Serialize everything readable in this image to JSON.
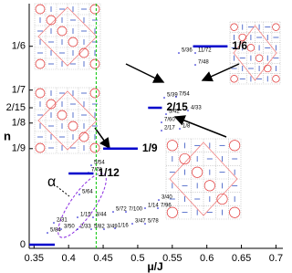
{
  "chart_data": {
    "type": "staircase",
    "xlabel": "μ/J",
    "ylabel": "n",
    "xlim": [
      0.343,
      0.71
    ],
    "xticks": [
      0.35,
      0.4,
      0.45,
      0.5,
      0.55,
      0.6,
      0.65,
      0.7
    ],
    "ylim": [
      0,
      0.178
    ],
    "yticks": [
      0,
      {
        "value": 0.1111,
        "label": "1/9"
      },
      {
        "value": 0.125,
        "label": "1/8"
      },
      {
        "value": 0.1333,
        "label": "2/15"
      },
      {
        "value": 0.1429,
        "label": "1/7"
      },
      {
        "value": 0.1667,
        "label": "1/6"
      }
    ],
    "color": "#0000cc",
    "plateaus": [
      {
        "n": 0,
        "x": [
          0.343,
          0.38
        ]
      },
      {
        "n": 0.0833,
        "label": "1/12",
        "x": [
          0.4,
          0.436
        ]
      },
      {
        "n": 0.1111,
        "label": "1/9",
        "x": [
          0.45,
          0.5
        ]
      },
      {
        "n": 0.1333,
        "label": "2/15",
        "x": [
          0.515,
          0.535
        ]
      },
      {
        "n": 0.1667,
        "label": "1/6",
        "x": [
          0.58,
          0.63
        ]
      }
    ],
    "vline": {
      "x": 0.44,
      "color": "#22cc22"
    },
    "region_label": "α",
    "annotations": [
      "5/54",
      "7/78",
      "5/64",
      "2/31",
      "3/50",
      "5/84",
      "1/15",
      "2/33",
      "3/44",
      "5/82",
      "3/49",
      "5/72",
      "7/100",
      "1/16",
      "1/14",
      "3/47",
      "7/96",
      "5/78",
      "3/40",
      "5/42",
      "5/39",
      "7/60",
      "2/17",
      "7/54",
      "4/33",
      "1/8",
      "5/36",
      "11/72",
      "7/48"
    ]
  }
}
